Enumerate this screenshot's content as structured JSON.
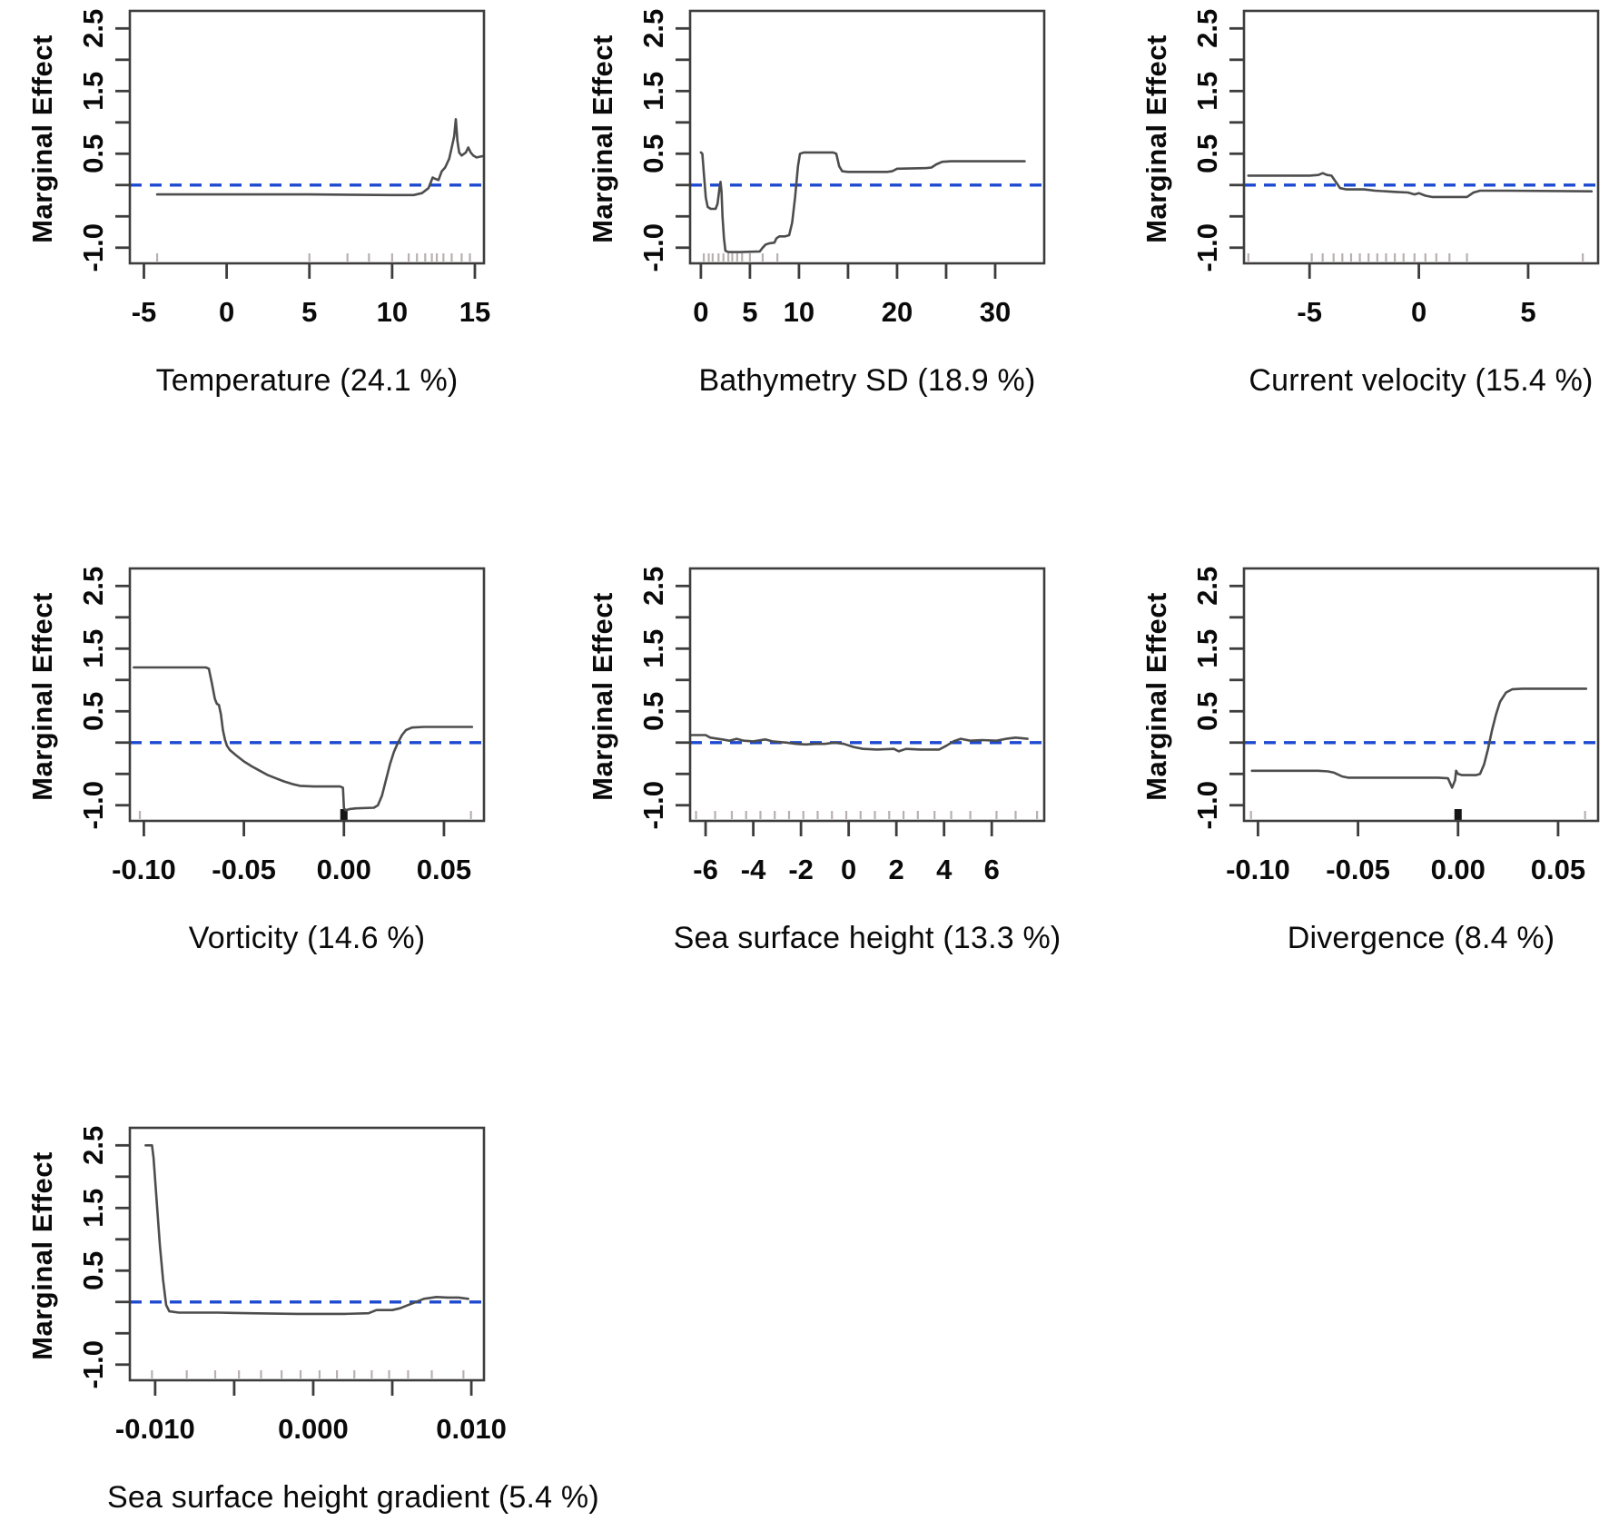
{
  "figure": {
    "ylabel": "Marginal Effect",
    "background": "#ffffff",
    "description": "Partial dependence (marginal effect) plots for seven predictor variables"
  },
  "colors": {
    "curve": "#4d4d4d",
    "zero_line": "#1c49cf",
    "axis": "#3d3d3d",
    "rug": "#b9b0b0",
    "rug_dark": "#161616",
    "text": "#0a0a0a"
  },
  "y_axis": {
    "lim": [
      -1.25,
      2.78
    ],
    "labeled_ticks": [
      {
        "v": -1.0,
        "l": "-1.0"
      },
      {
        "v": 0.5,
        "l": "0.5"
      },
      {
        "v": 1.5,
        "l": "1.5"
      },
      {
        "v": 2.5,
        "l": "2.5"
      }
    ],
    "minor_ticks": [
      -0.5,
      0.0,
      1.0,
      2.0
    ],
    "zero_line_value": 0
  },
  "chart_data": [
    {
      "type": "line",
      "variable": "Temperature",
      "importance_pct": 24.1,
      "title": "Temperature (24.1 %)",
      "xlim": [
        -5.85,
        15.55
      ],
      "xticks": [
        {
          "v": -5,
          "l": "-5"
        },
        {
          "v": 0,
          "l": "0"
        },
        {
          "v": 5,
          "l": "5"
        },
        {
          "v": 10,
          "l": "10"
        },
        {
          "v": 15,
          "l": "15"
        }
      ],
      "rug": [
        -4.2,
        5.0,
        7.3,
        8.6,
        10.0,
        11.0,
        11.5,
        12.0,
        12.4,
        12.7,
        13.1,
        13.6,
        14.2,
        14.7
      ],
      "rug_dark": [],
      "points": [
        [
          -4.2,
          -0.15
        ],
        [
          5,
          -0.15
        ],
        [
          10,
          -0.16
        ],
        [
          11.3,
          -0.16
        ],
        [
          11.8,
          -0.13
        ],
        [
          12.2,
          -0.05
        ],
        [
          12.45,
          0.12
        ],
        [
          12.6,
          0.1
        ],
        [
          12.8,
          0.08
        ],
        [
          13.0,
          0.22
        ],
        [
          13.2,
          0.28
        ],
        [
          13.45,
          0.42
        ],
        [
          13.6,
          0.6
        ],
        [
          13.75,
          0.78
        ],
        [
          13.85,
          1.05
        ],
        [
          13.95,
          0.7
        ],
        [
          14.05,
          0.52
        ],
        [
          14.2,
          0.47
        ],
        [
          14.45,
          0.52
        ],
        [
          14.6,
          0.6
        ],
        [
          14.75,
          0.52
        ],
        [
          14.9,
          0.47
        ],
        [
          15.1,
          0.44
        ],
        [
          15.45,
          0.46
        ]
      ]
    },
    {
      "type": "line",
      "variable": "Bathymetry SD",
      "importance_pct": 18.9,
      "title": "Bathymetry SD (18.9 %)",
      "xlim": [
        -1.1,
        35.0
      ],
      "xticks": [
        {
          "v": 0,
          "l": "0"
        },
        {
          "v": 5,
          "l": "5"
        },
        {
          "v": 10,
          "l": "10"
        },
        {
          "v": 15
        },
        {
          "v": 20,
          "l": "20"
        },
        {
          "v": 25
        },
        {
          "v": 30,
          "l": "30"
        }
      ],
      "rug": [
        0.3,
        0.8,
        1.2,
        1.8,
        2.3,
        2.8,
        3.2,
        3.7,
        4.2,
        5.0,
        6.3,
        7.8
      ],
      "rug_dark": [],
      "points": [
        [
          0.0,
          0.52
        ],
        [
          0.15,
          0.5
        ],
        [
          0.3,
          0.2
        ],
        [
          0.5,
          -0.2
        ],
        [
          0.7,
          -0.35
        ],
        [
          1.0,
          -0.38
        ],
        [
          1.5,
          -0.38
        ],
        [
          1.7,
          -0.3
        ],
        [
          1.9,
          -0.05
        ],
        [
          2.0,
          0.05
        ],
        [
          2.1,
          -0.1
        ],
        [
          2.2,
          -0.5
        ],
        [
          2.35,
          -0.85
        ],
        [
          2.5,
          -1.05
        ],
        [
          2.8,
          -1.07
        ],
        [
          4.0,
          -1.07
        ],
        [
          6.0,
          -1.06
        ],
        [
          6.3,
          -1.0
        ],
        [
          6.6,
          -0.95
        ],
        [
          7.0,
          -0.93
        ],
        [
          7.5,
          -0.92
        ],
        [
          7.7,
          -0.85
        ],
        [
          8.0,
          -0.82
        ],
        [
          8.6,
          -0.82
        ],
        [
          9.0,
          -0.8
        ],
        [
          9.3,
          -0.6
        ],
        [
          9.6,
          -0.2
        ],
        [
          9.9,
          0.3
        ],
        [
          10.1,
          0.5
        ],
        [
          10.5,
          0.52
        ],
        [
          13.5,
          0.52
        ],
        [
          13.8,
          0.5
        ],
        [
          14.1,
          0.3
        ],
        [
          14.4,
          0.22
        ],
        [
          15.0,
          0.21
        ],
        [
          19.0,
          0.21
        ],
        [
          19.5,
          0.22
        ],
        [
          20.0,
          0.26
        ],
        [
          23.0,
          0.27
        ],
        [
          23.5,
          0.28
        ],
        [
          24.0,
          0.33
        ],
        [
          24.6,
          0.37
        ],
        [
          25.5,
          0.38
        ],
        [
          33.0,
          0.38
        ]
      ]
    },
    {
      "type": "line",
      "variable": "Current velocity",
      "importance_pct": 15.4,
      "title": "Current velocity (15.4 %)",
      "xlim": [
        -8.0,
        8.2
      ],
      "xticks": [
        {
          "v": -5,
          "l": "-5"
        },
        {
          "v": 0,
          "l": "0"
        },
        {
          "v": 5,
          "l": "5"
        }
      ],
      "rug": [
        -7.8,
        -4.9,
        -4.4,
        -3.9,
        -3.5,
        -3.1,
        -2.7,
        -2.3,
        -1.9,
        -1.5,
        -1.1,
        -0.7,
        -0.2,
        0.3,
        0.8,
        1.4,
        2.2,
        7.5
      ],
      "rug_dark": [],
      "points": [
        [
          -7.8,
          0.15
        ],
        [
          -5.0,
          0.15
        ],
        [
          -4.6,
          0.16
        ],
        [
          -4.4,
          0.19
        ],
        [
          -4.2,
          0.16
        ],
        [
          -4.0,
          0.15
        ],
        [
          -3.8,
          0.05
        ],
        [
          -3.6,
          -0.05
        ],
        [
          -3.3,
          -0.07
        ],
        [
          -2.5,
          -0.07
        ],
        [
          -2.0,
          -0.09
        ],
        [
          -1.0,
          -0.11
        ],
        [
          -0.5,
          -0.12
        ],
        [
          -0.2,
          -0.15
        ],
        [
          0.0,
          -0.13
        ],
        [
          0.3,
          -0.17
        ],
        [
          0.6,
          -0.19
        ],
        [
          1.5,
          -0.19
        ],
        [
          2.2,
          -0.19
        ],
        [
          2.5,
          -0.12
        ],
        [
          2.8,
          -0.09
        ],
        [
          4.0,
          -0.09
        ],
        [
          7.9,
          -0.1
        ]
      ]
    },
    {
      "type": "line",
      "variable": "Vorticity",
      "importance_pct": 14.6,
      "title": "Vorticity (14.6 %)",
      "xlim": [
        -0.107,
        0.07
      ],
      "xticks": [
        {
          "v": -0.1,
          "l": "-0.10"
        },
        {
          "v": -0.05,
          "l": "-0.05"
        },
        {
          "v": 0.0,
          "l": "0.00"
        },
        {
          "v": 0.05,
          "l": "0.05"
        }
      ],
      "rug": [
        -0.102,
        0.0635
      ],
      "rug_dark": [
        -0.0008,
        0.0,
        0.0008
      ],
      "points": [
        [
          -0.105,
          1.2
        ],
        [
          -0.069,
          1.2
        ],
        [
          -0.0675,
          1.18
        ],
        [
          -0.066,
          0.95
        ],
        [
          -0.0645,
          0.7
        ],
        [
          -0.0635,
          0.62
        ],
        [
          -0.0625,
          0.6
        ],
        [
          -0.0615,
          0.45
        ],
        [
          -0.0605,
          0.2
        ],
        [
          -0.0595,
          0.05
        ],
        [
          -0.0585,
          -0.05
        ],
        [
          -0.057,
          -0.12
        ],
        [
          -0.054,
          -0.2
        ],
        [
          -0.05,
          -0.3
        ],
        [
          -0.046,
          -0.38
        ],
        [
          -0.042,
          -0.45
        ],
        [
          -0.038,
          -0.52
        ],
        [
          -0.034,
          -0.57
        ],
        [
          -0.03,
          -0.62
        ],
        [
          -0.026,
          -0.66
        ],
        [
          -0.022,
          -0.69
        ],
        [
          -0.015,
          -0.7
        ],
        [
          -0.002,
          -0.7
        ],
        [
          -0.0005,
          -0.72
        ],
        [
          0.0,
          -1.05
        ],
        [
          0.001,
          -1.08
        ],
        [
          0.003,
          -1.06
        ],
        [
          0.006,
          -1.05
        ],
        [
          0.015,
          -1.04
        ],
        [
          0.017,
          -1.0
        ],
        [
          0.019,
          -0.85
        ],
        [
          0.021,
          -0.6
        ],
        [
          0.023,
          -0.35
        ],
        [
          0.025,
          -0.15
        ],
        [
          0.027,
          0.0
        ],
        [
          0.029,
          0.12
        ],
        [
          0.031,
          0.2
        ],
        [
          0.034,
          0.24
        ],
        [
          0.04,
          0.25
        ],
        [
          0.064,
          0.25
        ]
      ]
    },
    {
      "type": "line",
      "variable": "Sea surface height",
      "importance_pct": 13.3,
      "title": "Sea surface height (13.3 %)",
      "xlim": [
        -6.65,
        8.2
      ],
      "xticks": [
        {
          "v": -6,
          "l": "-6"
        },
        {
          "v": -4,
          "l": "-4"
        },
        {
          "v": -2,
          "l": "-2"
        },
        {
          "v": 0,
          "l": "0"
        },
        {
          "v": 2,
          "l": "2"
        },
        {
          "v": 4,
          "l": "4"
        },
        {
          "v": 6,
          "l": "6"
        }
      ],
      "rug": [
        -6.4,
        -5.6,
        -4.9,
        -4.3,
        -3.7,
        -3.1,
        -2.5,
        -1.9,
        -1.3,
        -0.7,
        -0.1,
        0.5,
        1.1,
        1.7,
        2.3,
        2.9,
        3.6,
        4.3,
        5.1,
        6.2,
        7.0,
        7.9
      ],
      "rug_dark": [],
      "points": [
        [
          -6.6,
          0.12
        ],
        [
          -6.0,
          0.12
        ],
        [
          -5.8,
          0.08
        ],
        [
          -5.3,
          0.05
        ],
        [
          -5.0,
          0.03
        ],
        [
          -4.7,
          0.06
        ],
        [
          -4.4,
          0.03
        ],
        [
          -4.0,
          0.02
        ],
        [
          -3.5,
          0.05
        ],
        [
          -3.2,
          0.02
        ],
        [
          -2.6,
          0.0
        ],
        [
          -2.2,
          -0.02
        ],
        [
          -1.8,
          -0.03
        ],
        [
          -1.4,
          -0.02
        ],
        [
          -1.0,
          -0.02
        ],
        [
          -0.6,
          0.0
        ],
        [
          -0.2,
          -0.02
        ],
        [
          0.2,
          -0.07
        ],
        [
          0.6,
          -0.1
        ],
        [
          1.2,
          -0.11
        ],
        [
          1.9,
          -0.1
        ],
        [
          2.1,
          -0.14
        ],
        [
          2.4,
          -0.1
        ],
        [
          3.0,
          -0.11
        ],
        [
          3.8,
          -0.11
        ],
        [
          4.1,
          -0.05
        ],
        [
          4.4,
          0.02
        ],
        [
          4.7,
          0.06
        ],
        [
          5.1,
          0.03
        ],
        [
          5.6,
          0.04
        ],
        [
          6.2,
          0.03
        ],
        [
          6.6,
          0.06
        ],
        [
          7.0,
          0.08
        ],
        [
          7.5,
          0.06
        ]
      ]
    },
    {
      "type": "line",
      "variable": "Divergence",
      "importance_pct": 8.4,
      "title": "Divergence (8.4 %)",
      "xlim": [
        -0.107,
        0.07
      ],
      "xticks": [
        {
          "v": -0.1,
          "l": "-0.10"
        },
        {
          "v": -0.05,
          "l": "-0.05"
        },
        {
          "v": 0.0,
          "l": "0.00"
        },
        {
          "v": 0.05,
          "l": "0.05"
        }
      ],
      "rug": [
        -0.1035,
        0.0635
      ],
      "rug_dark": [
        -0.0008,
        0.0,
        0.0008
      ],
      "points": [
        [
          -0.103,
          -0.45
        ],
        [
          -0.07,
          -0.45
        ],
        [
          -0.065,
          -0.46
        ],
        [
          -0.062,
          -0.48
        ],
        [
          -0.058,
          -0.54
        ],
        [
          -0.055,
          -0.56
        ],
        [
          -0.03,
          -0.56
        ],
        [
          -0.01,
          -0.56
        ],
        [
          -0.005,
          -0.57
        ],
        [
          -0.003,
          -0.72
        ],
        [
          -0.0015,
          -0.6
        ],
        [
          -0.001,
          -0.45
        ],
        [
          0.0,
          -0.5
        ],
        [
          0.002,
          -0.52
        ],
        [
          0.009,
          -0.52
        ],
        [
          0.011,
          -0.5
        ],
        [
          0.013,
          -0.35
        ],
        [
          0.015,
          -0.1
        ],
        [
          0.017,
          0.2
        ],
        [
          0.019,
          0.45
        ],
        [
          0.021,
          0.65
        ],
        [
          0.024,
          0.8
        ],
        [
          0.027,
          0.85
        ],
        [
          0.032,
          0.86
        ],
        [
          0.064,
          0.86
        ]
      ]
    },
    {
      "type": "line",
      "variable": "Sea surface height gradient",
      "importance_pct": 5.4,
      "title": "Sea surface height gradient (5.4 %)",
      "xlim": [
        -0.0116,
        0.0108
      ],
      "xticks": [
        {
          "v": -0.01,
          "l": "-0.010"
        },
        {
          "v": -0.005
        },
        {
          "v": 0.0,
          "l": "0.000"
        },
        {
          "v": 0.005
        },
        {
          "v": 0.01,
          "l": "0.010"
        }
      ],
      "rug": [
        -0.0102,
        -0.008,
        -0.0062,
        -0.0047,
        -0.0033,
        -0.002,
        -0.0008,
        0.0004,
        0.0015,
        0.0026,
        0.0037,
        0.0048,
        0.006,
        0.0075,
        0.0095
      ],
      "rug_dark": [],
      "points": [
        [
          -0.0106,
          2.5
        ],
        [
          -0.0102,
          2.5
        ],
        [
          -0.0101,
          2.3
        ],
        [
          -0.0099,
          1.6
        ],
        [
          -0.0097,
          0.9
        ],
        [
          -0.0095,
          0.35
        ],
        [
          -0.0093,
          -0.05
        ],
        [
          -0.0091,
          -0.15
        ],
        [
          -0.0085,
          -0.17
        ],
        [
          -0.006,
          -0.17
        ],
        [
          -0.004,
          -0.18
        ],
        [
          -0.001,
          -0.19
        ],
        [
          0.002,
          -0.19
        ],
        [
          0.0035,
          -0.18
        ],
        [
          0.004,
          -0.13
        ],
        [
          0.005,
          -0.13
        ],
        [
          0.0055,
          -0.1
        ],
        [
          0.006,
          -0.05
        ],
        [
          0.0065,
          0.0
        ],
        [
          0.007,
          0.05
        ],
        [
          0.0078,
          0.08
        ],
        [
          0.0085,
          0.07
        ],
        [
          0.0092,
          0.07
        ],
        [
          0.0098,
          0.05
        ]
      ]
    }
  ]
}
